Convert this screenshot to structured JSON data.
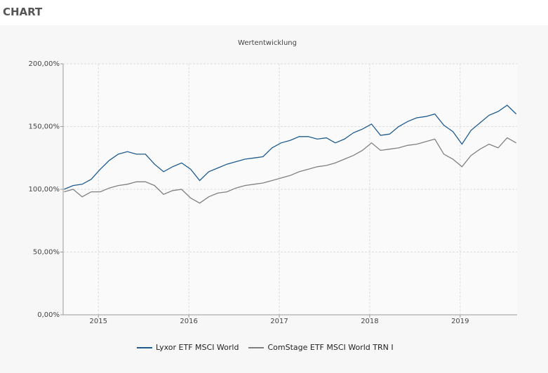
{
  "header": {
    "title": "CHART"
  },
  "chart_data": {
    "type": "line",
    "title": "Wertentwicklung",
    "x": [
      2014.62,
      2014.72,
      2014.82,
      2014.92,
      2015.02,
      2015.12,
      2015.22,
      2015.32,
      2015.42,
      2015.52,
      2015.62,
      2015.72,
      2015.82,
      2015.92,
      2016.02,
      2016.12,
      2016.22,
      2016.32,
      2016.42,
      2016.52,
      2016.62,
      2016.72,
      2016.82,
      2016.92,
      2017.02,
      2017.12,
      2017.22,
      2017.32,
      2017.42,
      2017.52,
      2017.62,
      2017.72,
      2017.82,
      2017.92,
      2018.02,
      2018.12,
      2018.22,
      2018.32,
      2018.42,
      2018.52,
      2018.62,
      2018.72,
      2018.82,
      2018.92,
      2019.02,
      2019.12,
      2019.22,
      2019.32,
      2019.42,
      2019.52,
      2019.62
    ],
    "series": [
      {
        "name": "Lyxor ETF MSCI World",
        "color": "#1f5b8e",
        "values": [
          100,
          103,
          104,
          108,
          116,
          123,
          128,
          130,
          128,
          128,
          120,
          114,
          118,
          121,
          116,
          107,
          114,
          117,
          120,
          122,
          124,
          125,
          126,
          133,
          137,
          139,
          142,
          142,
          140,
          141,
          137,
          140,
          145,
          148,
          152,
          143,
          144,
          150,
          154,
          157,
          158,
          160,
          151,
          146,
          136,
          147,
          153,
          159,
          162,
          167,
          160
        ]
      },
      {
        "name": "ComStage ETF MSCI World TRN I",
        "color": "#808080",
        "values": [
          98,
          100,
          94,
          98,
          98,
          101,
          103,
          104,
          106,
          106,
          103,
          96,
          99,
          100,
          93,
          89,
          94,
          97,
          98,
          101,
          103,
          104,
          105,
          107,
          109,
          111,
          114,
          116,
          118,
          119,
          121,
          124,
          127,
          131,
          137,
          131,
          132,
          133,
          135,
          136,
          138,
          140,
          128,
          124,
          118,
          127,
          132,
          136,
          133,
          141,
          137
        ]
      }
    ],
    "xlim": [
      2014.61,
      2019.63
    ],
    "xticks": [
      2015,
      2016,
      2017,
      2018,
      2019
    ],
    "ylim": [
      0,
      200
    ],
    "yticks": [
      {
        "value": 0,
        "label": "0,00%"
      },
      {
        "value": 50,
        "label": "50,00%"
      },
      {
        "value": 100,
        "label": "100,00%"
      },
      {
        "value": 150,
        "label": "150,00%"
      },
      {
        "value": 200,
        "label": "200,00%"
      }
    ],
    "grid": true
  }
}
